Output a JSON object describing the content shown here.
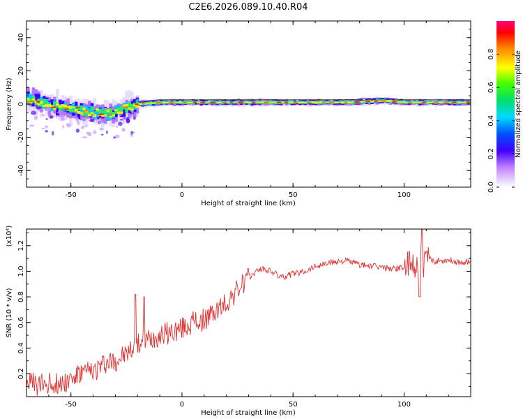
{
  "title": "C2E6.2026.089.10.40.R04",
  "chart_data": [
    {
      "type": "heatmap",
      "title": "C2E6.2026.089.10.40.R04",
      "xlabel": "Height of straight line (km)",
      "ylabel": "Frequency (Hz)",
      "xlim": [
        -70,
        130
      ],
      "ylim": [
        -50,
        50
      ],
      "x_ticks": [
        -50,
        0,
        50,
        100
      ],
      "y_ticks": [
        -40,
        -20,
        0,
        20,
        40
      ],
      "colorbar": {
        "label": "Normalized spectral amplitude",
        "range": [
          0,
          1
        ],
        "ticks": [
          0.0,
          0.2,
          0.4,
          0.6,
          0.8
        ]
      },
      "ridge": {
        "x": [
          -68,
          -60,
          -50,
          -40,
          -33,
          -27,
          -20,
          -10,
          0,
          10,
          25,
          50,
          75,
          90,
          100,
          110,
          130
        ],
        "y": [
          3,
          -1,
          -3,
          -5,
          -6,
          -3,
          0,
          1,
          1,
          1,
          1,
          1,
          1,
          2,
          1,
          1,
          1
        ]
      }
    },
    {
      "type": "line",
      "xlabel": "Height of straight line (km)",
      "ylabel": "SNR (10 * v/v)",
      "y_multiplier": "(x10⁴)",
      "xlim": [
        -70,
        130
      ],
      "ylim": [
        0.02,
        1.33
      ],
      "x_ticks": [
        -50,
        0,
        50,
        100
      ],
      "y_ticks": [
        0.2,
        0.4,
        0.6,
        0.8,
        1.0,
        1.2
      ],
      "series": [
        {
          "name": "SNR",
          "color": "#e03030",
          "x": [
            -70,
            -65,
            -60,
            -55,
            -50,
            -45,
            -40,
            -35,
            -30,
            -25,
            -20,
            -15,
            -10,
            -5,
            0,
            5,
            10,
            15,
            20,
            25,
            30,
            35,
            40,
            45,
            50,
            55,
            60,
            65,
            70,
            75,
            80,
            85,
            90,
            95,
            100,
            105,
            110,
            115,
            120,
            125,
            130
          ],
          "y": [
            0.15,
            0.1,
            0.13,
            0.12,
            0.16,
            0.2,
            0.22,
            0.28,
            0.3,
            0.35,
            0.42,
            0.47,
            0.5,
            0.52,
            0.55,
            0.6,
            0.62,
            0.68,
            0.75,
            0.85,
            0.95,
            1.02,
            1.0,
            0.95,
            0.98,
            1.0,
            1.04,
            1.06,
            1.08,
            1.08,
            1.05,
            1.04,
            1.03,
            1.02,
            1.03,
            1.04,
            1.08,
            1.08,
            1.09,
            1.07,
            1.08
          ]
        }
      ],
      "spikes": [
        {
          "x": -21,
          "y": 0.82
        },
        {
          "x": -17,
          "y": 0.8
        },
        {
          "x": 107,
          "y": 0.8
        },
        {
          "x": 108,
          "y": 1.33
        }
      ]
    }
  ]
}
